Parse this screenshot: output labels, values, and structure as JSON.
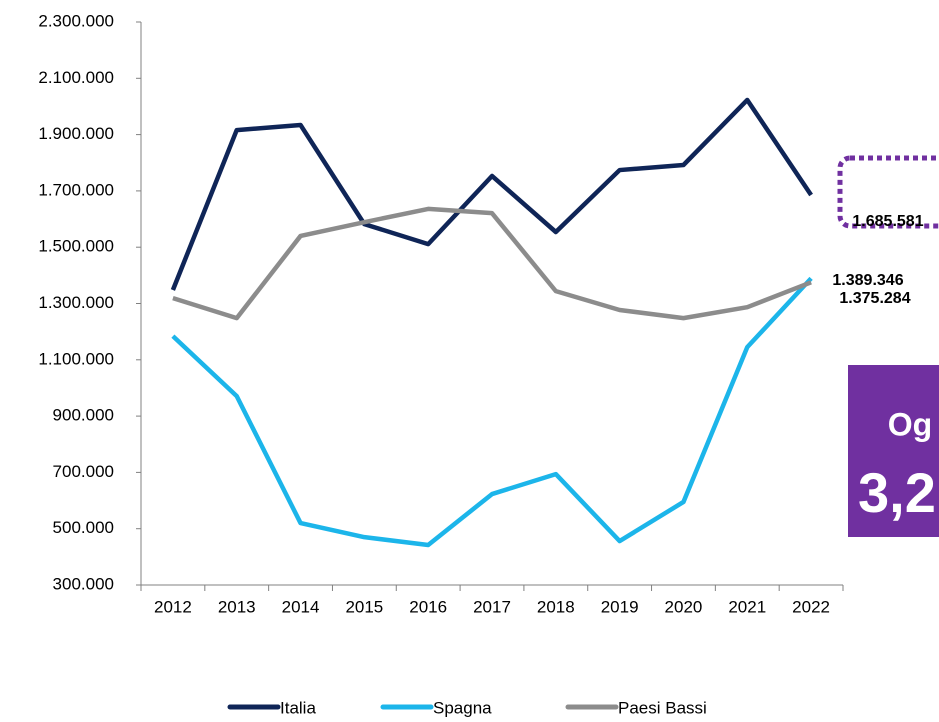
{
  "chart_data": {
    "type": "line",
    "categories": [
      "2012",
      "2013",
      "2014",
      "2015",
      "2016",
      "2017",
      "2018",
      "2019",
      "2020",
      "2021",
      "2022"
    ],
    "series": [
      {
        "name": "Italia",
        "color": "#0f2557",
        "values": [
          1348000,
          1916000,
          1934000,
          1582000,
          1511000,
          1753000,
          1554000,
          1774000,
          1792000,
          2023000,
          1685581
        ],
        "value_labels": [
          null,
          null,
          null,
          null,
          null,
          null,
          null,
          null,
          null,
          null,
          "1.685.581"
        ]
      },
      {
        "name": "Spagna",
        "color": "#1cb5ea",
        "values": [
          1184000,
          971000,
          520000,
          470000,
          442000,
          623000,
          694000,
          456000,
          595000,
          1145000,
          1389346
        ],
        "value_labels": [
          null,
          null,
          null,
          null,
          null,
          null,
          null,
          null,
          null,
          null,
          "1.389.346"
        ]
      },
      {
        "name": "Paesi Bassi",
        "color": "#8c8c8c",
        "values": [
          1319000,
          1248000,
          1540000,
          1589000,
          1636000,
          1621000,
          1344000,
          1277000,
          1248000,
          1287000,
          1375284
        ],
        "value_labels": [
          null,
          null,
          null,
          null,
          null,
          null,
          null,
          null,
          null,
          null,
          "1.375.284"
        ]
      }
    ],
    "ylim": [
      300000,
      2300000
    ],
    "yticks": [
      {
        "value": 300000,
        "label": "300.000"
      },
      {
        "value": 500000,
        "label": "500.000"
      },
      {
        "value": 700000,
        "label": "700.000"
      },
      {
        "value": 900000,
        "label": "900.000"
      },
      {
        "value": 1100000,
        "label": "1.100.000"
      },
      {
        "value": 1300000,
        "label": "1.300.000"
      },
      {
        "value": 1500000,
        "label": "1.500.000"
      },
      {
        "value": 1700000,
        "label": "1.700.000"
      },
      {
        "value": 1900000,
        "label": "1.900.000"
      },
      {
        "value": 2100000,
        "label": "2.100.000"
      },
      {
        "value": 2300000,
        "label": "2.300.000"
      }
    ],
    "grid": false,
    "legend": "bottom",
    "annotations": [
      "Og",
      "3,2"
    ]
  }
}
